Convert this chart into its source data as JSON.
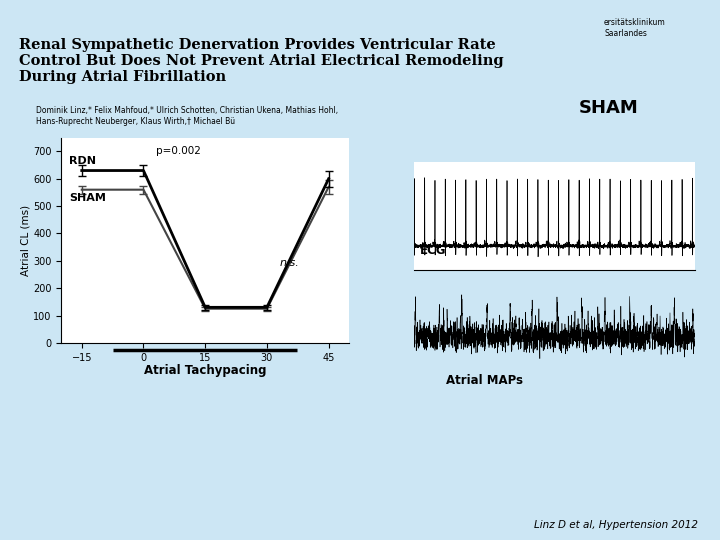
{
  "bg_color": "#cce6f4",
  "title_line1": "Renal Sympathetic Denervation Provides Ventricular Rate",
  "title_line2": "Control But Does Not Prevent Atrial Electrical Remodeling",
  "title_line3": "During Atrial Fibrillation",
  "authors": "Dominik Linz,* Felix Mahfoud,* Ulrich Schotten, Christian Ukena, Mathias Hohl,\nHans-Ruprecht Neuberger, Klaus Wirth,† Michael Bü",
  "institution": "ersitätsklinikum\nSaarlandes",
  "citation": "Linz D et al, Hypertension 2012",
  "sham_label": "SHAM",
  "ecg_label": "ECG",
  "atrial_maps_label": "Atrial MAPs",
  "atrial_tachypacing_label": "Atrial Tachypacing",
  "rdn_label": "RDN",
  "sham_graph_label": "SHAM",
  "p_value_label": "p=0.002",
  "ns_label": "n.s.",
  "ylabel": "Atrial CL (ms)",
  "xticks": [
    -15,
    0,
    15,
    30,
    45
  ],
  "yticks": [
    0,
    100,
    200,
    300,
    400,
    500,
    600,
    700
  ],
  "ylim": [
    0,
    750
  ],
  "xlim": [
    -20,
    50
  ],
  "rdn_x": [
    -15,
    0,
    15,
    30,
    45
  ],
  "rdn_y": [
    630,
    630,
    130,
    130,
    600
  ],
  "sham_x": [
    -15,
    0,
    15,
    30,
    45
  ],
  "sham_y": [
    560,
    560,
    125,
    125,
    570
  ],
  "rdn_error": [
    20,
    20,
    10,
    10,
    30
  ],
  "sham_error": [
    15,
    15,
    8,
    8,
    25
  ]
}
